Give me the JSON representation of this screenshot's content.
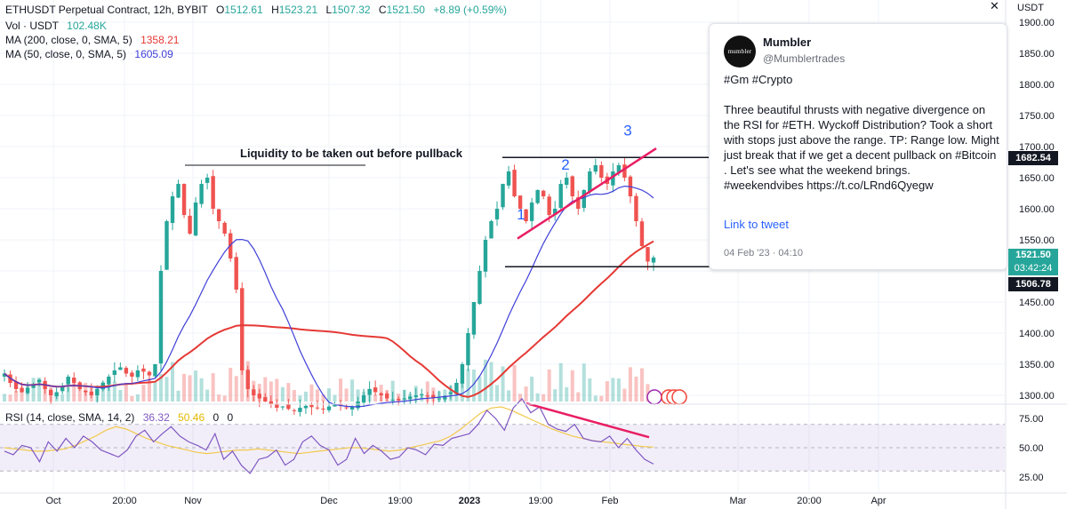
{
  "header": {
    "symbol": "ETHUSDT Perpetual Contract, 12h, BYBIT",
    "open_label": "O",
    "open": "1512.61",
    "high_label": "H",
    "high": "1523.21",
    "low_label": "L",
    "low": "1507.32",
    "close_label": "C",
    "close": "1521.50",
    "change": "+8.89 (+0.59%)"
  },
  "legends": {
    "vol_label": "Vol · USDT",
    "vol_value": "102.48K",
    "ma200_label": "MA (200, close, 0, SMA, 5)",
    "ma200_value": "1358.21",
    "ma50_label": "MA (50, close, 0, SMA, 5)",
    "ma50_value": "1605.09",
    "rsi_label": "RSI (14, close, SMA, 14, 2)",
    "rsi_value": "36.32",
    "rsi_ma_value": "50.46",
    "rsi_extra1": "0",
    "rsi_extra2": "0"
  },
  "price_axis": {
    "unit": "USDT",
    "ticks": [
      "1900.00",
      "1850.00",
      "1800.00",
      "1750.00",
      "1700.00",
      "1650.00",
      "1600.00",
      "1550.00",
      "1500.00",
      "1450.00",
      "1400.00",
      "1350.00",
      "1300.00"
    ],
    "flag_range_high": "1682.54",
    "flag_last_price": "1521.50",
    "flag_countdown": "03:42:24",
    "flag_range_low": "1506.78"
  },
  "rsi_axis": {
    "ticks": [
      "75.00",
      "50.00",
      "25.00"
    ]
  },
  "time_axis": {
    "ticks": [
      "Oct",
      "20:00",
      "Nov",
      "Dec",
      "19:00",
      "2023",
      "19:00",
      "Feb",
      "Mar",
      "20:00",
      "Apr"
    ]
  },
  "annotations": {
    "liquidity": "Liquidity to be taken out before pullback",
    "thrust1": "1",
    "thrust2": "2",
    "thrust3": "3"
  },
  "tweet": {
    "name": "Mumbler",
    "handle": "@Mumblertrades",
    "avatar_text": "mumbler",
    "body": "#Gm #Crypto\n\nThree beautiful thrusts with negative divergence on the RSI for #ETH. Wyckoff Distribution? Took a short with stops just above the range. TP: Range low. Might just break that if we get a decent pullback on #Bitcoin . Let's see what the weekend brings.\n#weekendvibes https://t.co/LRnd6Qyegw",
    "link_label": "Link to tweet",
    "date": "04 Feb '23 · 04:10"
  },
  "colors": {
    "up": "#26a69a",
    "down": "#ef5350",
    "ma200": "#e53935",
    "ma50": "#3f3fd9",
    "rsi": "#7e57c2",
    "rsi_ma": "#f2c94c",
    "accent_blue": "#2962ff",
    "trend_pink": "#e91e63"
  },
  "chart_data": [
    {
      "type": "candlestick",
      "title": "ETHUSDT Perpetual Contract, 12h, BYBIT",
      "ylabel": "USDT",
      "ylim": [
        1280,
        1900
      ],
      "x_ticks": [
        "Oct",
        "20:00",
        "Nov",
        "Dec",
        "19:00",
        "2023",
        "19:00",
        "Feb",
        "Mar",
        "20:00",
        "Apr"
      ],
      "grid": true,
      "last": {
        "open": 1512.61,
        "high": 1523.21,
        "low": 1507.32,
        "close": 1521.5
      },
      "approx_close_path": [
        1335,
        1320,
        1310,
        1305,
        1312,
        1318,
        1325,
        1310,
        1300,
        1305,
        1315,
        1330,
        1320,
        1310,
        1305,
        1300,
        1310,
        1320,
        1330,
        1340,
        1345,
        1335,
        1330,
        1340,
        1338,
        1332,
        1350,
        1500,
        1580,
        1620,
        1640,
        1590,
        1560,
        1610,
        1640,
        1650,
        1600,
        1580,
        1560,
        1520,
        1470,
        1340,
        1310,
        1300,
        1295,
        1290,
        1285,
        1280,
        1282,
        1278,
        1276,
        1280,
        1283,
        1281,
        1279,
        1278,
        1282,
        1285,
        1283,
        1280,
        1282,
        1290,
        1300,
        1310,
        1305,
        1300,
        1295,
        1293,
        1292,
        1295,
        1298,
        1300,
        1302,
        1298,
        1296,
        1295,
        1299,
        1305,
        1320,
        1350,
        1400,
        1450,
        1500,
        1550,
        1580,
        1600,
        1640,
        1660,
        1620,
        1600,
        1580,
        1610,
        1630,
        1620,
        1590,
        1600,
        1640,
        1650,
        1620,
        1600,
        1630,
        1660,
        1670,
        1650,
        1640,
        1660,
        1670,
        1650,
        1620,
        1580,
        1540,
        1515,
        1521.5
      ],
      "series": [
        {
          "name": "MA (200, close, 0, SMA, 5)",
          "last": 1358.21
        },
        {
          "name": "MA (50, close, 0, SMA, 5)",
          "last": 1605.09
        }
      ],
      "volume_last": "102.48K",
      "levels": {
        "range_high": 1682.54,
        "range_low": 1506.78,
        "liquidity": 1670
      }
    },
    {
      "type": "line",
      "title": "RSI (14, close, SMA, 14, 2)",
      "ylim": [
        15,
        85
      ],
      "y_ticks": [
        75,
        50,
        25
      ],
      "series": [
        {
          "name": "RSI",
          "last": 36.32,
          "values": [
            47,
            44,
            52,
            50,
            38,
            55,
            47,
            58,
            50,
            60,
            55,
            48,
            45,
            42,
            48,
            60,
            65,
            55,
            62,
            68,
            60,
            55,
            52,
            48,
            62,
            40,
            47,
            35,
            28,
            40,
            42,
            48,
            35,
            40,
            55,
            60,
            52,
            48,
            35,
            40,
            58,
            45,
            52,
            47,
            40,
            42,
            50,
            48,
            44,
            53,
            52,
            58,
            60,
            62,
            70,
            82,
            75,
            65,
            84,
            92,
            80,
            85,
            70,
            66,
            64,
            70,
            58,
            56,
            55,
            60,
            50,
            58,
            48,
            40,
            36
          ]
        },
        {
          "name": "RSI MA",
          "last": 50.46,
          "values": [
            50,
            49,
            48,
            47,
            47,
            48,
            49,
            52,
            56,
            60,
            65,
            68,
            66,
            62,
            58,
            55,
            52,
            50,
            48,
            46,
            45,
            46,
            47,
            48,
            48,
            49,
            48,
            47,
            46,
            45,
            46,
            47,
            48,
            49,
            50,
            50,
            49,
            48,
            47,
            48,
            50,
            52,
            54,
            56,
            60,
            66,
            73,
            80,
            84,
            85,
            82,
            78,
            74,
            70,
            66,
            63,
            60,
            58,
            56,
            55,
            54,
            53,
            52,
            51,
            50.5
          ]
        }
      ]
    }
  ]
}
